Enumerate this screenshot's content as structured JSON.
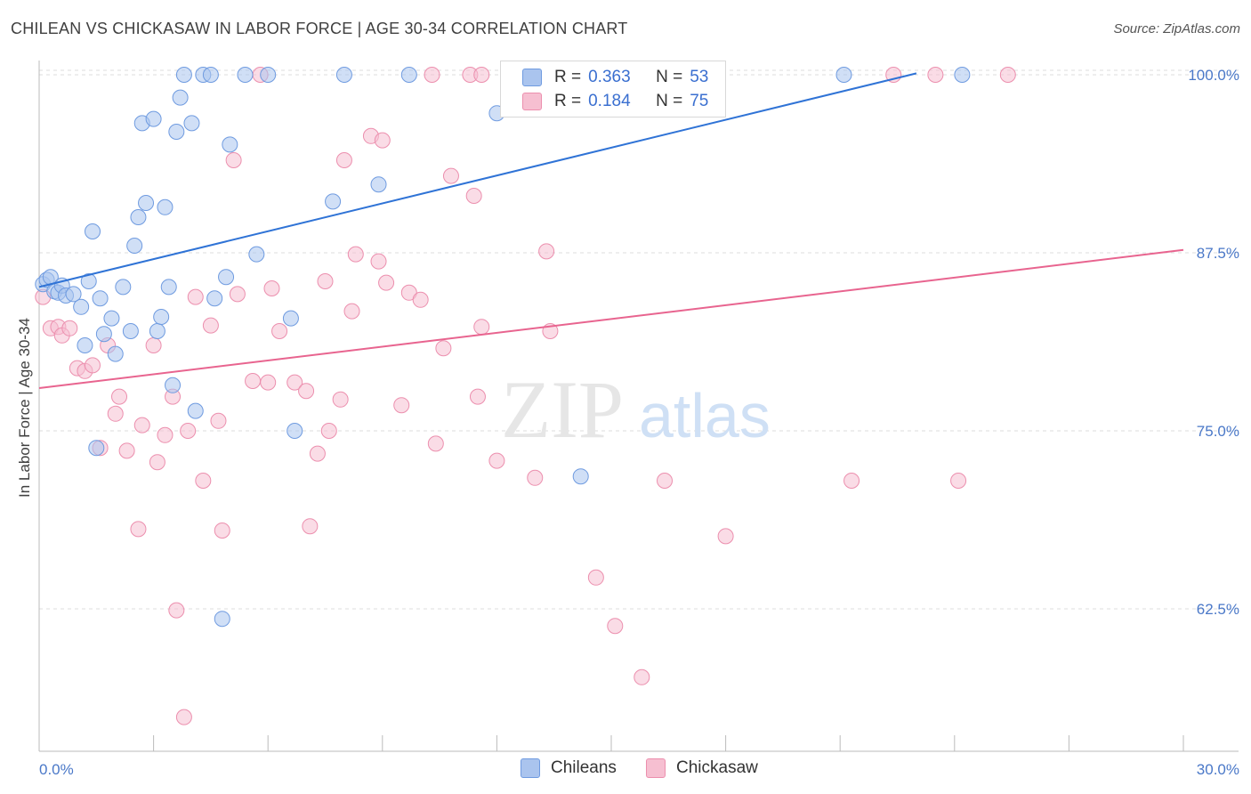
{
  "title": "CHILEAN VS CHICKASAW IN LABOR FORCE | AGE 30-34 CORRELATION CHART",
  "source": "Source: ZipAtlas.com",
  "watermark": {
    "zip": "ZIP",
    "atlas": "atlas"
  },
  "colors": {
    "blue_fill": "#aac4ee",
    "blue_stroke": "#6f9be0",
    "blue_line": "#2f73d6",
    "pink_fill": "#f6bfd1",
    "pink_stroke": "#ec8fae",
    "pink_line": "#e8648f",
    "tick_text": "#4a78c8",
    "grid": "#dcdcdc"
  },
  "legend": {
    "rows": [
      {
        "r_label": "R =",
        "r_value": "0.363",
        "n_label": "N =",
        "n_value": "53"
      },
      {
        "r_label": "R =",
        "r_value": "0.184",
        "n_label": "N =",
        "n_value": "75"
      }
    ]
  },
  "bottom_legend": [
    "Chileans",
    "Chickasaw"
  ],
  "chart_data": {
    "type": "scatter",
    "title": "CHILEAN VS CHICKASAW IN LABOR FORCE | AGE 30-34 CORRELATION CHART",
    "xlabel": "",
    "ylabel": "In Labor Force | Age 30-34",
    "xlim": [
      0,
      30
    ],
    "ylim": [
      52.5,
      101.5
    ],
    "x_tick_labels": [
      "0.0%",
      "30.0%"
    ],
    "y_ticks": [
      62.5,
      75.0,
      87.5,
      100.0
    ],
    "y_tick_labels": [
      "62.5%",
      "75.0%",
      "87.5%",
      "100.0%"
    ],
    "grid": true,
    "legend_position": "top-center",
    "series": [
      {
        "name": "Chileans",
        "r": 0.363,
        "n": 53,
        "trend": {
          "x": [
            0.0,
            23.0
          ],
          "y": [
            85.1,
            100.1
          ]
        },
        "points": [
          [
            0.1,
            85.3
          ],
          [
            0.2,
            85.6
          ],
          [
            0.3,
            85.8
          ],
          [
            0.4,
            84.8
          ],
          [
            0.5,
            84.7
          ],
          [
            0.6,
            85.2
          ],
          [
            0.7,
            84.5
          ],
          [
            0.9,
            84.6
          ],
          [
            1.1,
            83.7
          ],
          [
            1.2,
            81.0
          ],
          [
            1.3,
            85.5
          ],
          [
            1.4,
            89.0
          ],
          [
            1.6,
            84.3
          ],
          [
            1.7,
            81.8
          ],
          [
            1.9,
            82.9
          ],
          [
            2.0,
            80.4
          ],
          [
            2.2,
            85.1
          ],
          [
            2.4,
            82.0
          ],
          [
            2.5,
            88.0
          ],
          [
            2.6,
            90.0
          ],
          [
            2.7,
            96.6
          ],
          [
            2.8,
            91.0
          ],
          [
            3.0,
            96.9
          ],
          [
            3.1,
            82.0
          ],
          [
            3.2,
            83.0
          ],
          [
            3.3,
            90.7
          ],
          [
            3.4,
            85.1
          ],
          [
            3.5,
            78.2
          ],
          [
            3.7,
            98.4
          ],
          [
            3.8,
            100.0
          ],
          [
            4.0,
            96.6
          ],
          [
            4.1,
            76.4
          ],
          [
            4.3,
            100.0
          ],
          [
            4.5,
            100.0
          ],
          [
            4.6,
            84.3
          ],
          [
            4.8,
            61.8
          ],
          [
            4.9,
            85.8
          ],
          [
            5.0,
            95.1
          ],
          [
            5.4,
            100.0
          ],
          [
            5.7,
            87.4
          ],
          [
            6.0,
            100.0
          ],
          [
            6.6,
            82.9
          ],
          [
            6.7,
            75.0
          ],
          [
            7.7,
            91.1
          ],
          [
            8.0,
            100.0
          ],
          [
            8.9,
            92.3
          ],
          [
            9.7,
            100.0
          ],
          [
            12.0,
            97.3
          ],
          [
            14.2,
            71.8
          ],
          [
            21.1,
            100.0
          ],
          [
            24.2,
            100.0
          ],
          [
            1.5,
            73.8
          ],
          [
            3.6,
            96.0
          ]
        ]
      },
      {
        "name": "Chickasaw",
        "r": 0.184,
        "n": 75,
        "trend": {
          "x": [
            0.0,
            30.0
          ],
          "y": [
            78.0,
            87.7
          ]
        },
        "points": [
          [
            0.1,
            84.4
          ],
          [
            0.3,
            82.2
          ],
          [
            0.5,
            82.3
          ],
          [
            0.6,
            81.7
          ],
          [
            0.8,
            82.2
          ],
          [
            1.0,
            79.4
          ],
          [
            1.2,
            79.2
          ],
          [
            1.4,
            79.6
          ],
          [
            1.6,
            73.8
          ],
          [
            1.8,
            81.0
          ],
          [
            2.0,
            76.2
          ],
          [
            2.1,
            77.4
          ],
          [
            2.3,
            73.6
          ],
          [
            2.6,
            68.1
          ],
          [
            2.7,
            75.4
          ],
          [
            3.0,
            81.0
          ],
          [
            3.1,
            72.8
          ],
          [
            3.3,
            74.7
          ],
          [
            3.5,
            77.4
          ],
          [
            3.6,
            62.4
          ],
          [
            3.8,
            54.9
          ],
          [
            3.9,
            75.0
          ],
          [
            4.1,
            84.4
          ],
          [
            4.3,
            71.5
          ],
          [
            4.5,
            82.4
          ],
          [
            4.7,
            75.7
          ],
          [
            4.8,
            68.0
          ],
          [
            5.1,
            94.0
          ],
          [
            5.2,
            84.6
          ],
          [
            5.6,
            78.5
          ],
          [
            5.8,
            100.0
          ],
          [
            6.0,
            78.4
          ],
          [
            6.1,
            85.0
          ],
          [
            6.3,
            82.0
          ],
          [
            6.7,
            78.4
          ],
          [
            7.0,
            77.8
          ],
          [
            7.1,
            68.3
          ],
          [
            7.3,
            73.4
          ],
          [
            7.5,
            85.5
          ],
          [
            7.6,
            75.0
          ],
          [
            7.9,
            77.2
          ],
          [
            8.0,
            94.0
          ],
          [
            8.2,
            83.4
          ],
          [
            8.3,
            87.4
          ],
          [
            8.7,
            95.7
          ],
          [
            8.9,
            86.9
          ],
          [
            9.0,
            95.4
          ],
          [
            9.1,
            85.4
          ],
          [
            9.5,
            76.8
          ],
          [
            9.7,
            84.7
          ],
          [
            10.0,
            84.2
          ],
          [
            10.3,
            100.0
          ],
          [
            10.4,
            74.1
          ],
          [
            10.6,
            80.8
          ],
          [
            10.8,
            92.9
          ],
          [
            11.3,
            100.0
          ],
          [
            11.4,
            91.5
          ],
          [
            11.5,
            77.4
          ],
          [
            11.6,
            82.3
          ],
          [
            12.0,
            72.9
          ],
          [
            13.0,
            71.7
          ],
          [
            13.3,
            87.6
          ],
          [
            13.4,
            82.0
          ],
          [
            14.6,
            64.7
          ],
          [
            15.1,
            61.3
          ],
          [
            15.8,
            57.7
          ],
          [
            16.4,
            71.5
          ],
          [
            17.6,
            100.0
          ],
          [
            18.0,
            67.6
          ],
          [
            21.3,
            71.5
          ],
          [
            22.4,
            100.0
          ],
          [
            23.5,
            100.0
          ],
          [
            24.1,
            71.5
          ],
          [
            25.4,
            100.0
          ],
          [
            11.6,
            100.0
          ]
        ]
      }
    ]
  }
}
